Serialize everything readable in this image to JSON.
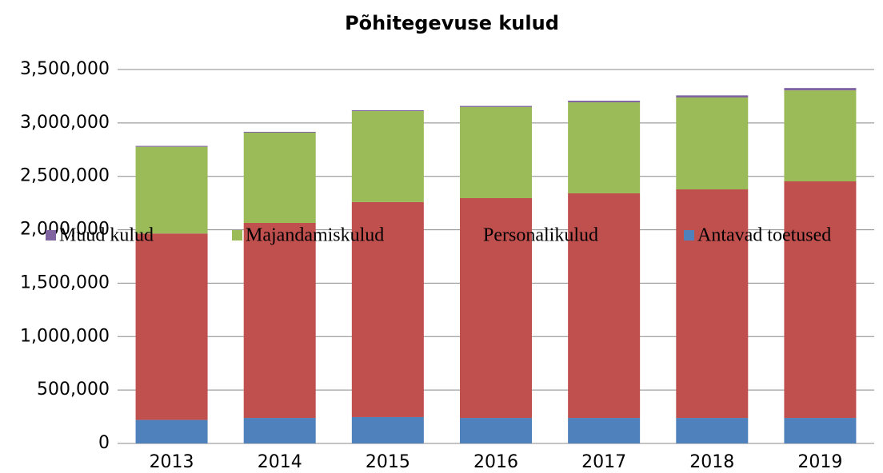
{
  "chart_data": {
    "type": "stacked_bar",
    "title": "Põhitegevuse kulud",
    "categories": [
      "2013",
      "2014",
      "2015",
      "2016",
      "2017",
      "2018",
      "2019"
    ],
    "series": [
      {
        "name": "Antavad toetused",
        "color": "#4f81bd",
        "values": [
          220000,
          239000,
          247000,
          239000,
          239000,
          239000,
          239000
        ]
      },
      {
        "name": "Personalikulud",
        "color": "#c0504d",
        "values": [
          1745000,
          1825000,
          2012000,
          2057000,
          2102000,
          2139000,
          2214000
        ]
      },
      {
        "name": "Majandamiskulud",
        "color": "#9bbb59",
        "values": [
          812000,
          845000,
          852000,
          853000,
          852000,
          860000,
          852000
        ]
      },
      {
        "name": "Muud kulud",
        "color": "#8064a2",
        "values": [
          8000,
          8000,
          8000,
          10000,
          15000,
          20000,
          22000
        ]
      }
    ],
    "ylim": [
      0,
      3500000
    ],
    "yticks": [
      0,
      {
        "value": 500000,
        "label": "500,000"
      },
      {
        "value": 1000000,
        "label": "1,000,000"
      },
      {
        "value": 1500000,
        "label": "1,500,000"
      },
      {
        "value": 2000000,
        "label": "2,000,000"
      },
      {
        "value": 2500000,
        "label": "2,500,000"
      },
      {
        "value": 3000000,
        "label": "3,000,000"
      },
      {
        "value": 3500000,
        "label": "3,500,000"
      }
    ],
    "grid": true
  }
}
